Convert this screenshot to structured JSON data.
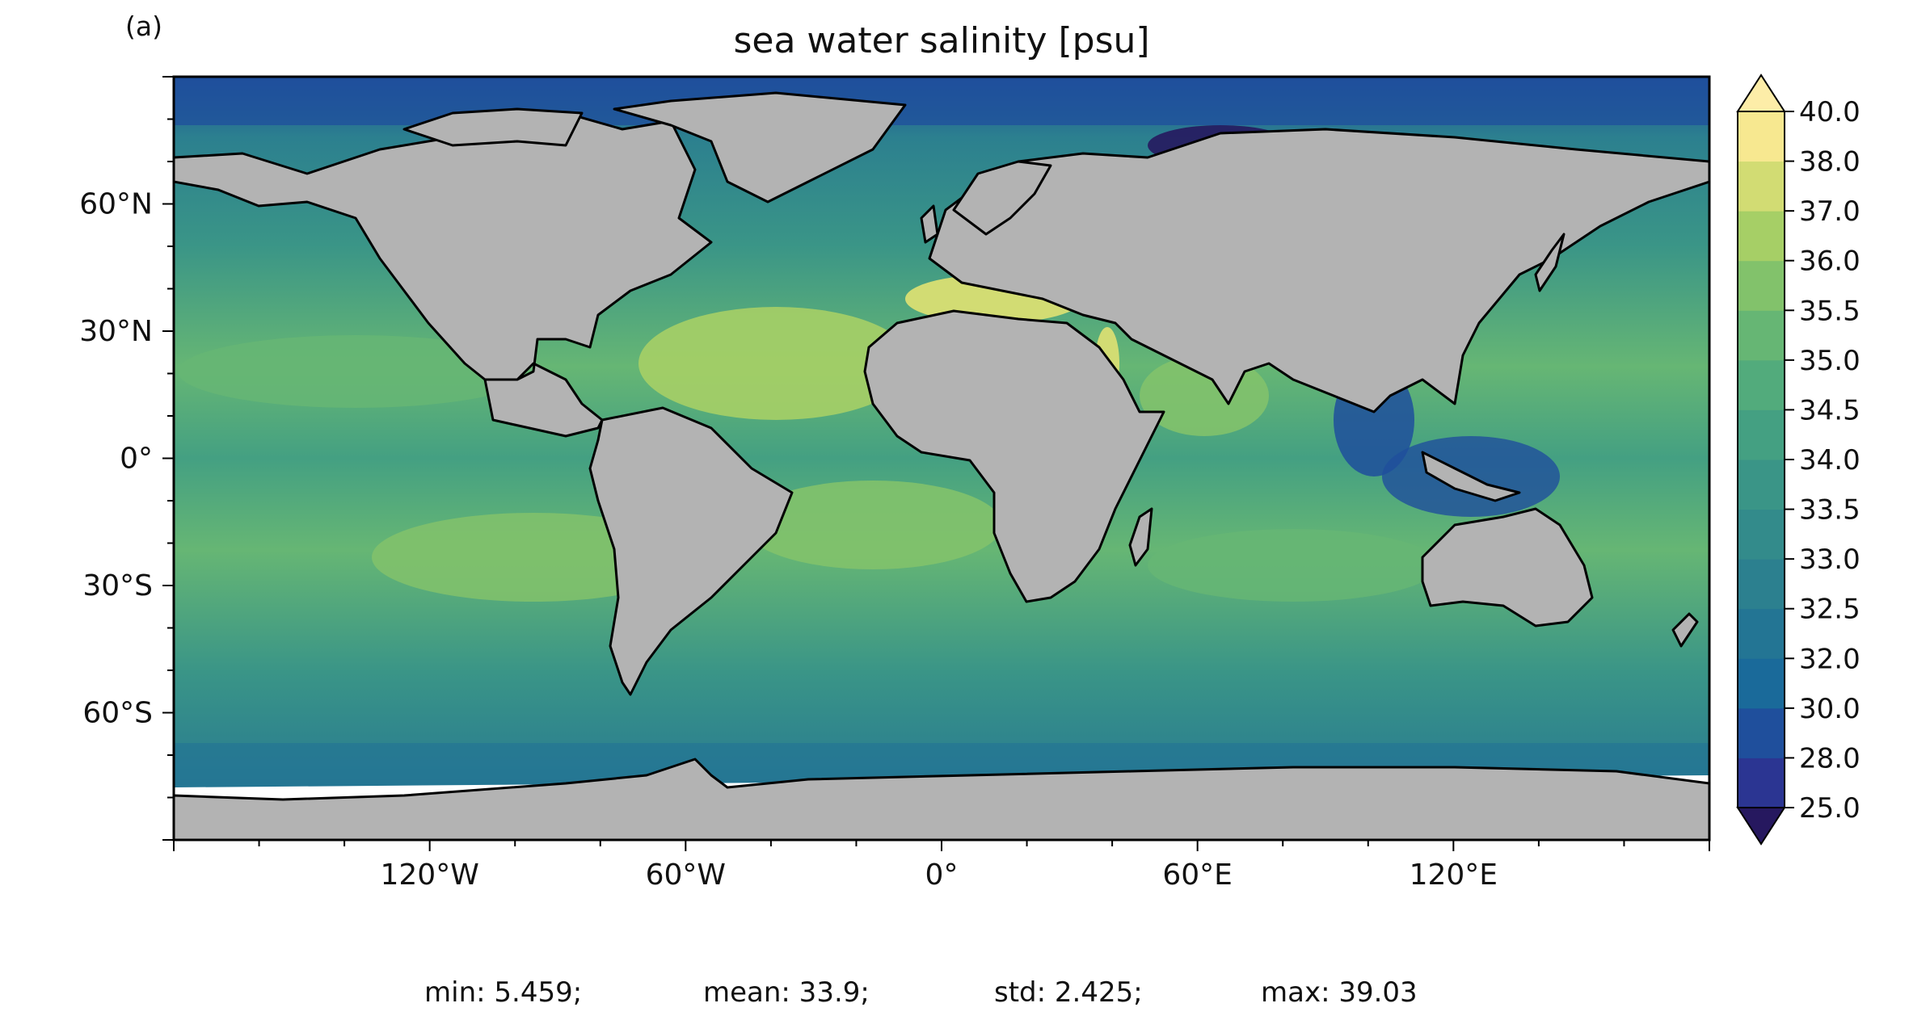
{
  "panel_label": "(a)",
  "title": "sea water salinity [psu]",
  "map": {
    "projection": "plate-carree",
    "land_color": "#b3b3b3",
    "coastline_color": "#000000",
    "lon_ticks": [
      {
        "lon": -120,
        "label": "120°W"
      },
      {
        "lon": -60,
        "label": "60°W"
      },
      {
        "lon": 0,
        "label": "0°"
      },
      {
        "lon": 60,
        "label": "60°E"
      },
      {
        "lon": 120,
        "label": "120°E"
      }
    ],
    "lat_ticks": [
      {
        "lat": 60,
        "label": "60°N"
      },
      {
        "lat": 30,
        "label": "30°N"
      },
      {
        "lat": 0,
        "label": "0°"
      },
      {
        "lat": -30,
        "label": "30°S"
      },
      {
        "lat": -60,
        "label": "60°S"
      }
    ],
    "lon_range": [
      -180,
      180
    ],
    "lat_range": [
      -90,
      90
    ]
  },
  "colorbar": {
    "extend": "both",
    "levels": [
      "25.0",
      "28.0",
      "30.0",
      "32.0",
      "32.5",
      "33.0",
      "33.5",
      "34.0",
      "34.5",
      "35.0",
      "35.5",
      "36.0",
      "37.0",
      "38.0",
      "40.0"
    ],
    "colors": [
      "#26185f",
      "#2b3592",
      "#1f4f9c",
      "#1a6a9a",
      "#237594",
      "#2c808f",
      "#338b8b",
      "#3a9587",
      "#44a082",
      "#52ab7c",
      "#66b674",
      "#82c26b",
      "#a6cf66",
      "#d2dc73",
      "#f7e890",
      "#fdeda8"
    ],
    "under_color": "#26185f",
    "over_color": "#fdeda8"
  },
  "stats": {
    "min": "min: 5.459;",
    "mean": "mean: 33.9;",
    "std": "std: 2.425;",
    "max": "max: 39.03"
  }
}
